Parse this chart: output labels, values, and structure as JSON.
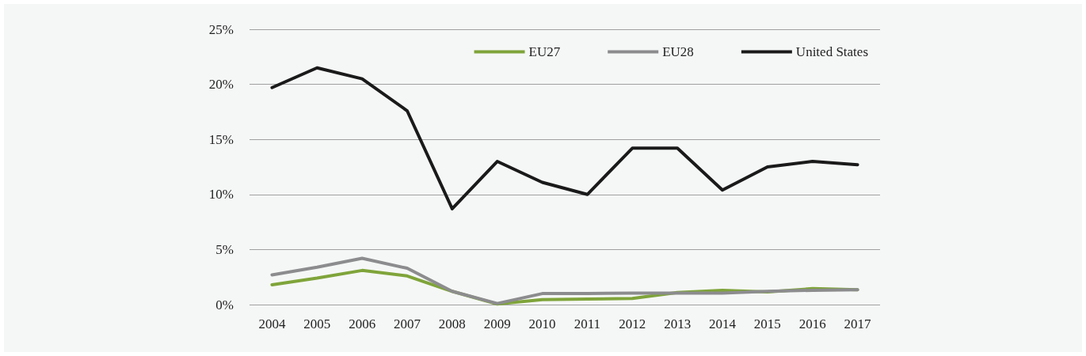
{
  "chart_data": {
    "type": "line",
    "categories": [
      "2004",
      "2005",
      "2006",
      "2007",
      "2008",
      "2009",
      "2010",
      "2011",
      "2012",
      "2013",
      "2014",
      "2015",
      "2016",
      "2017"
    ],
    "series": [
      {
        "name": "EU27",
        "color": "#7fa43a",
        "values": [
          1.8,
          2.4,
          3.1,
          2.6,
          1.2,
          0.05,
          0.45,
          0.5,
          0.55,
          1.1,
          1.3,
          1.15,
          1.45,
          1.35
        ]
      },
      {
        "name": "EU28",
        "color": "#8c8c8e",
        "values": [
          2.7,
          3.4,
          4.2,
          3.3,
          1.2,
          0.1,
          1.0,
          1.0,
          1.05,
          1.05,
          1.05,
          1.2,
          1.3,
          1.35
        ]
      },
      {
        "name": "United States",
        "color": "#1a1a1a",
        "values": [
          19.7,
          21.5,
          20.5,
          17.6,
          8.7,
          13.0,
          11.1,
          10.0,
          14.2,
          14.2,
          10.4,
          12.5,
          13.0,
          12.7
        ]
      }
    ],
    "ylim": [
      0,
      25
    ],
    "yticks": [
      {
        "value": 0,
        "label": "0%"
      },
      {
        "value": 5,
        "label": "5%"
      },
      {
        "value": 10,
        "label": "10%"
      },
      {
        "value": 15,
        "label": "15%"
      },
      {
        "value": 20,
        "label": "20%"
      },
      {
        "value": 25,
        "label": "25%"
      }
    ],
    "grid": "y",
    "legend": "top right",
    "marker": "none",
    "line_style": "solid"
  }
}
